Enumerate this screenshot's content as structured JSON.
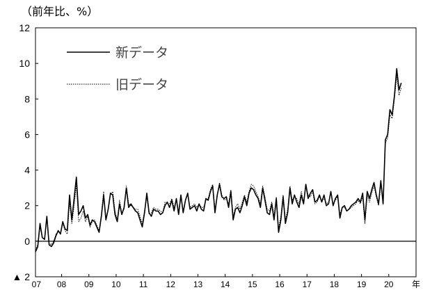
{
  "chart_data": {
    "type": "line",
    "unit_label": "（前年比、%）",
    "year_suffix": "年",
    "x_start": "2007-01",
    "ylim": [
      -2,
      12
    ],
    "y_ticks": [
      {
        "value": 12,
        "label": "12"
      },
      {
        "value": 10,
        "label": "10"
      },
      {
        "value": 8,
        "label": "8"
      },
      {
        "value": 6,
        "label": "6"
      },
      {
        "value": 4,
        "label": "4"
      },
      {
        "value": 2,
        "label": "2"
      },
      {
        "value": 0,
        "label": "0"
      },
      {
        "value": -2,
        "label": "▲ 2"
      }
    ],
    "x_tick_labels": [
      "07",
      "08",
      "09",
      "10",
      "11",
      "12",
      "13",
      "14",
      "15",
      "16",
      "17",
      "18",
      "19",
      "20"
    ],
    "grid": false,
    "legend": {
      "placement": "top-left",
      "entries": [
        "新データ",
        "旧データ"
      ]
    },
    "series": [
      {
        "name": "新データ",
        "style": "solid",
        "color": "#000000",
        "values": [
          -0.6,
          -0.3,
          1.0,
          0.2,
          0.1,
          1.4,
          -0.2,
          -0.3,
          -0.1,
          0.3,
          0.6,
          0.4,
          1.1,
          0.7,
          0.6,
          2.6,
          1.2,
          2.4,
          3.6,
          1.5,
          1.7,
          2.0,
          1.3,
          1.5,
          0.9,
          1.2,
          1.1,
          0.8,
          0.5,
          1.4,
          2.6,
          1.2,
          1.8,
          2.7,
          2.6,
          1.5,
          1.1,
          2.1,
          1.5,
          1.9,
          3.0,
          1.9,
          2.1,
          1.9,
          1.7,
          1.6,
          1.2,
          0.8,
          1.6,
          2.7,
          1.6,
          1.4,
          1.8,
          1.7,
          1.7,
          1.5,
          1.6,
          2.0,
          2.2,
          1.9,
          2.3,
          1.7,
          2.4,
          1.5,
          2.6,
          1.6,
          2.3,
          2.7,
          1.8,
          1.9,
          2.0,
          1.7,
          2.1,
          1.8,
          1.7,
          2.4,
          2.3,
          2.8,
          3.1,
          1.6,
          2.6,
          3.2,
          2.5,
          2.4,
          2.5,
          1.9,
          2.8,
          1.2,
          1.8,
          1.9,
          1.6,
          2.0,
          2.5,
          2.0,
          2.7,
          3.0,
          2.9,
          2.6,
          2.4,
          1.9,
          3.0,
          2.3,
          1.6,
          1.5,
          2.1,
          1.2,
          2.4,
          0.5,
          1.2,
          2.5,
          1.0,
          1.6,
          3.0,
          2.1,
          2.6,
          2.2,
          1.9,
          2.6,
          2.1,
          3.2,
          2.4,
          2.7,
          2.9,
          2.2,
          2.3,
          2.6,
          2.2,
          2.6,
          2.0,
          2.1,
          2.8,
          2.0,
          2.4,
          2.6,
          1.3,
          1.9,
          2.0,
          1.7,
          1.8,
          2.0,
          2.1,
          2.2,
          2.4,
          2.2,
          2.7,
          1.2,
          2.8,
          2.4,
          2.9,
          3.3,
          2.6,
          2.1,
          3.4,
          2.1,
          5.7,
          6.0,
          7.4,
          7.1,
          8.2,
          9.7,
          8.5,
          8.9
        ]
      },
      {
        "name": "旧データ",
        "style": "dotted",
        "color": "#000000",
        "values": [
          -0.5,
          -0.2,
          0.8,
          0.2,
          0.1,
          1.3,
          -0.1,
          -0.2,
          0.0,
          0.4,
          0.5,
          0.5,
          1.0,
          0.6,
          0.4,
          2.2,
          1.0,
          2.0,
          3.2,
          1.1,
          1.3,
          1.7,
          1.1,
          1.4,
          0.8,
          1.1,
          1.2,
          0.9,
          0.6,
          1.5,
          2.8,
          1.3,
          1.8,
          2.6,
          2.8,
          1.7,
          1.2,
          2.3,
          1.6,
          1.8,
          3.1,
          2.1,
          2.0,
          1.9,
          1.8,
          1.8,
          1.4,
          1.0,
          1.7,
          2.5,
          1.5,
          1.6,
          1.9,
          1.8,
          1.8,
          1.7,
          1.6,
          2.2,
          2.1,
          2.1,
          2.4,
          1.9,
          2.3,
          1.7,
          2.5,
          1.7,
          2.3,
          2.6,
          1.9,
          2.0,
          2.1,
          1.9,
          2.1,
          1.9,
          1.9,
          2.3,
          2.4,
          2.9,
          3.2,
          1.8,
          2.5,
          3.3,
          2.6,
          2.3,
          2.4,
          2.1,
          2.9,
          1.4,
          1.9,
          2.1,
          1.8,
          2.2,
          2.6,
          2.2,
          2.8,
          3.2,
          3.1,
          2.8,
          2.5,
          2.1,
          3.1,
          2.5,
          1.8,
          1.7,
          2.2,
          1.4,
          2.5,
          0.7,
          1.4,
          2.6,
          1.2,
          1.8,
          3.1,
          2.3,
          2.5,
          2.4,
          2.1,
          2.8,
          2.2,
          3.2,
          2.6,
          2.5,
          2.8,
          2.1,
          2.2,
          2.5,
          2.3,
          2.4,
          2.1,
          2.2,
          2.7,
          2.1,
          2.3,
          2.5,
          1.5,
          1.9,
          1.9,
          1.7,
          1.8,
          1.9,
          2.0,
          2.1,
          2.3,
          2.1,
          2.5,
          1.0,
          2.6,
          2.2,
          2.7,
          3.1,
          2.5,
          2.0,
          3.2,
          2.2,
          5.5,
          5.8,
          7.1,
          6.9,
          8.0,
          9.3,
          8.2,
          8.6
        ]
      }
    ]
  }
}
